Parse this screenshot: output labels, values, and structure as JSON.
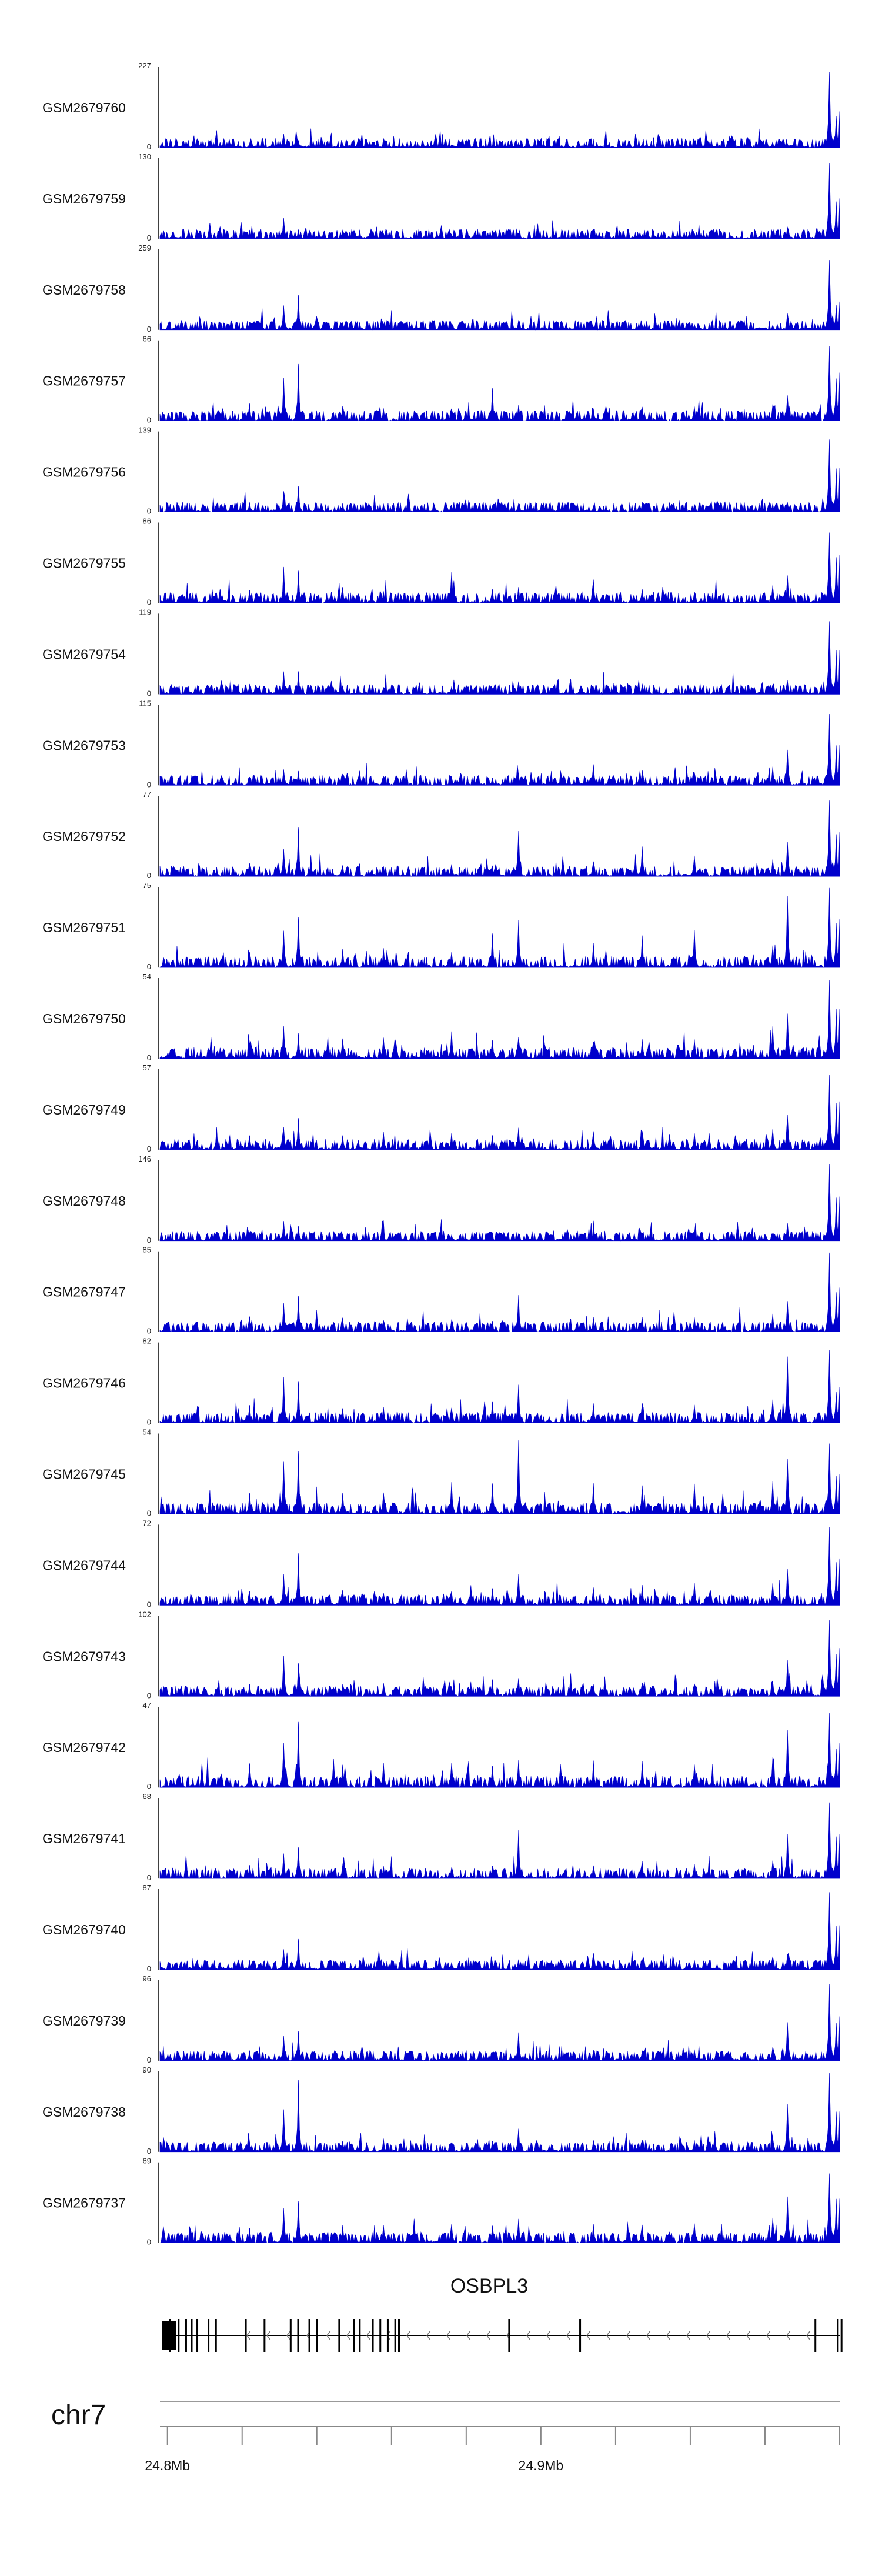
{
  "chart_data": {
    "type": "area",
    "title": "",
    "track_color": "#0000cc",
    "grid": false,
    "chromosome": "chr7",
    "x_axis": {
      "unit": "Mb",
      "range": [
        24.798,
        24.98
      ],
      "tick_interval_mb": 0.02,
      "tick_labels": [
        {
          "position_mb": 24.8,
          "label": "24.8Mb"
        },
        {
          "position_mb": 24.9,
          "label": "24.9Mb"
        }
      ]
    },
    "peak_positions_mb": [
      24.822,
      24.831,
      24.835,
      24.847,
      24.858,
      24.876,
      24.887,
      24.894,
      24.914,
      24.927,
      24.941,
      24.962,
      24.966,
      24.9774,
      24.979
    ],
    "tracks": [
      {
        "name": "GSM2679760",
        "ymin": 0,
        "ymax": 227,
        "peaks": [
          0.06,
          0.18,
          0.09,
          0.05,
          0.04,
          0.04,
          0.03,
          0.05,
          0.03,
          0.04,
          0.04,
          0.03,
          0.05,
          1.0,
          0.45
        ]
      },
      {
        "name": "GSM2679759",
        "ymin": 0,
        "ymax": 130,
        "peaks": [
          0.12,
          0.28,
          0.12,
          0.1,
          0.07,
          0.06,
          0.05,
          0.07,
          0.05,
          0.06,
          0.08,
          0.06,
          0.16,
          1.0,
          0.5
        ]
      },
      {
        "name": "GSM2679758",
        "ymin": 0,
        "ymax": 259,
        "peaks": [
          0.1,
          0.32,
          0.45,
          0.09,
          0.07,
          0.06,
          0.05,
          0.06,
          0.04,
          0.06,
          0.07,
          0.06,
          0.07,
          1.0,
          0.35
        ]
      },
      {
        "name": "GSM2679757",
        "ymin": 0,
        "ymax": 66,
        "peaks": [
          0.22,
          0.55,
          0.72,
          0.2,
          0.18,
          0.16,
          0.42,
          0.2,
          0.16,
          0.18,
          0.18,
          0.22,
          0.35,
          1.0,
          0.6
        ]
      },
      {
        "name": "GSM2679756",
        "ymin": 0,
        "ymax": 139,
        "peaks": [
          0.14,
          0.26,
          0.35,
          0.12,
          0.1,
          0.09,
          0.08,
          0.12,
          0.08,
          0.09,
          0.1,
          0.1,
          0.12,
          1.0,
          0.55
        ]
      },
      {
        "name": "GSM2679755",
        "ymin": 0,
        "ymax": 86,
        "peaks": [
          0.18,
          0.45,
          0.42,
          0.2,
          0.16,
          0.42,
          0.18,
          0.22,
          0.32,
          0.2,
          0.16,
          0.24,
          0.35,
          1.0,
          0.6
        ]
      },
      {
        "name": "GSM2679754",
        "ymin": 0,
        "ymax": 119,
        "peaks": [
          0.14,
          0.3,
          0.3,
          0.12,
          0.1,
          0.1,
          0.08,
          0.18,
          0.1,
          0.14,
          0.12,
          0.12,
          0.18,
          1.0,
          0.55
        ]
      },
      {
        "name": "GSM2679753",
        "ymin": 0,
        "ymax": 115,
        "peaks": [
          0.12,
          0.22,
          0.2,
          0.14,
          0.12,
          0.12,
          0.1,
          0.14,
          0.28,
          0.2,
          0.16,
          0.24,
          0.45,
          1.0,
          0.5
        ]
      },
      {
        "name": "GSM2679752",
        "ymin": 0,
        "ymax": 77,
        "peaks": [
          0.18,
          0.38,
          0.62,
          0.16,
          0.14,
          0.16,
          0.14,
          0.65,
          0.2,
          0.38,
          0.26,
          0.22,
          0.5,
          1.0,
          0.55
        ]
      },
      {
        "name": "GSM2679751",
        "ymin": 0,
        "ymax": 75,
        "peaks": [
          0.22,
          0.5,
          0.7,
          0.25,
          0.24,
          0.22,
          0.48,
          0.62,
          0.34,
          0.4,
          0.48,
          0.3,
          0.95,
          1.0,
          0.6
        ]
      },
      {
        "name": "GSM2679750",
        "ymin": 0,
        "ymax": 54,
        "peaks": [
          0.22,
          0.45,
          0.35,
          0.28,
          0.3,
          0.34,
          0.26,
          0.3,
          0.24,
          0.26,
          0.28,
          0.42,
          0.62,
          1.0,
          0.62
        ]
      },
      {
        "name": "GSM2679749",
        "ymin": 0,
        "ymax": 57,
        "peaks": [
          0.2,
          0.32,
          0.45,
          0.2,
          0.22,
          0.22,
          0.2,
          0.3,
          0.24,
          0.26,
          0.22,
          0.28,
          0.45,
          1.0,
          0.6
        ]
      },
      {
        "name": "GSM2679748",
        "ymin": 0,
        "ymax": 146,
        "peaks": [
          0.1,
          0.26,
          0.2,
          0.08,
          0.08,
          0.08,
          0.06,
          0.1,
          0.08,
          0.1,
          0.1,
          0.1,
          0.24,
          1.0,
          0.55
        ]
      },
      {
        "name": "GSM2679747",
        "ymin": 0,
        "ymax": 85,
        "peaks": [
          0.2,
          0.4,
          0.52,
          0.18,
          0.16,
          0.16,
          0.14,
          0.48,
          0.2,
          0.2,
          0.18,
          0.24,
          0.45,
          1.0,
          0.55
        ]
      },
      {
        "name": "GSM2679746",
        "ymin": 0,
        "ymax": 82,
        "peaks": [
          0.24,
          0.58,
          0.56,
          0.2,
          0.22,
          0.2,
          0.3,
          0.48,
          0.26,
          0.26,
          0.26,
          0.3,
          0.92,
          0.95,
          0.45
        ]
      },
      {
        "name": "GSM2679745",
        "ymin": 0,
        "ymax": 54,
        "peaks": [
          0.28,
          0.75,
          0.82,
          0.3,
          0.3,
          0.42,
          0.44,
          0.98,
          0.4,
          0.38,
          0.38,
          0.46,
          0.8,
          1.0,
          0.5
        ]
      },
      {
        "name": "GSM2679744",
        "ymin": 0,
        "ymax": 72,
        "peaks": [
          0.2,
          0.42,
          0.7,
          0.2,
          0.18,
          0.2,
          0.22,
          0.45,
          0.24,
          0.28,
          0.3,
          0.32,
          0.52,
          1.0,
          0.58
        ]
      },
      {
        "name": "GSM2679743",
        "ymin": 0,
        "ymax": 102,
        "peaks": [
          0.16,
          0.54,
          0.42,
          0.16,
          0.14,
          0.14,
          0.14,
          0.26,
          0.16,
          0.18,
          0.18,
          0.22,
          0.48,
          1.0,
          0.6
        ]
      },
      {
        "name": "GSM2679742",
        "ymin": 0,
        "ymax": 47,
        "peaks": [
          0.3,
          0.6,
          0.85,
          0.3,
          0.32,
          0.34,
          0.3,
          0.36,
          0.3,
          0.34,
          0.32,
          0.38,
          0.8,
          0.98,
          0.55
        ]
      },
      {
        "name": "GSM2679741",
        "ymin": 0,
        "ymax": 68,
        "peaks": [
          0.18,
          0.32,
          0.45,
          0.18,
          0.16,
          0.16,
          0.16,
          0.62,
          0.18,
          0.22,
          0.2,
          0.24,
          0.62,
          1.0,
          0.55
        ]
      },
      {
        "name": "GSM2679740",
        "ymin": 0,
        "ymax": 87,
        "peaks": [
          0.12,
          0.26,
          0.4,
          0.1,
          0.1,
          0.1,
          0.1,
          0.14,
          0.1,
          0.12,
          0.12,
          0.14,
          0.22,
          1.0,
          0.55
        ]
      },
      {
        "name": "GSM2679739",
        "ymin": 0,
        "ymax": 96,
        "peaks": [
          0.14,
          0.34,
          0.42,
          0.12,
          0.12,
          0.12,
          0.12,
          0.36,
          0.14,
          0.14,
          0.14,
          0.2,
          0.52,
          1.0,
          0.55
        ]
      },
      {
        "name": "GSM2679738",
        "ymin": 0,
        "ymax": 90,
        "peaks": [
          0.14,
          0.58,
          0.9,
          0.14,
          0.14,
          0.12,
          0.14,
          0.3,
          0.16,
          0.16,
          0.16,
          0.2,
          0.62,
          1.0,
          0.5
        ]
      },
      {
        "name": "GSM2679737",
        "ymin": 0,
        "ymax": 69,
        "peaks": [
          0.22,
          0.48,
          0.58,
          0.24,
          0.24,
          0.26,
          0.24,
          0.32,
          0.26,
          0.26,
          0.26,
          0.32,
          0.62,
          1.0,
          0.55
        ]
      }
    ],
    "gene": {
      "name": "OSBPL3",
      "strand": "-",
      "start_mb": 24.7985,
      "end_mb": 24.98,
      "exons_mb": [
        24.8007,
        24.803,
        24.805,
        24.8065,
        24.808,
        24.811,
        24.813,
        24.821,
        24.826,
        24.833,
        24.835,
        24.838,
        24.84,
        24.846,
        24.85,
        24.8515,
        24.855,
        24.857,
        24.859,
        24.861,
        24.862,
        24.8915,
        24.9105,
        24.9735,
        24.9795,
        24.9805
      ]
    }
  }
}
